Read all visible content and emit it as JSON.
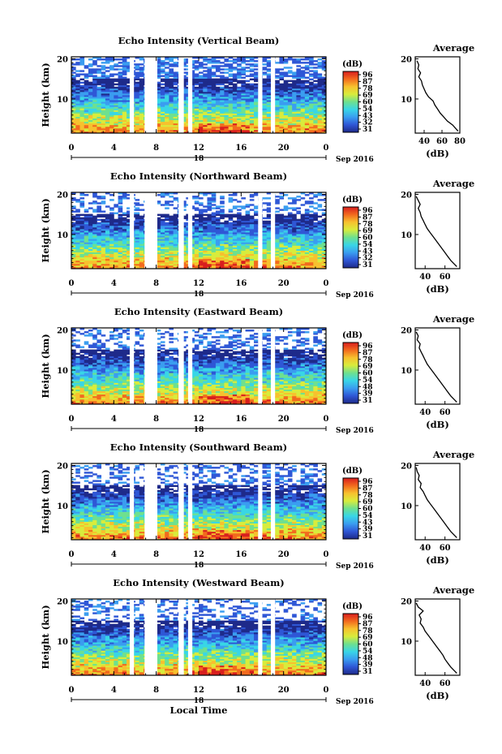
{
  "figure": {
    "xlabel": "Local Time",
    "date_label": "Sep 2016",
    "date_tick": "18",
    "colorbar_unit": "(dB)",
    "colorbar_ticks": [
      "96",
      "87",
      "78",
      "69",
      "60",
      "54",
      "48",
      "42",
      "39",
      "32",
      "31"
    ],
    "colors": {
      "colorbar_stops": [
        "#1e2a8a",
        "#2f57d6",
        "#3a9df0",
        "#39d6e6",
        "#6ee08f",
        "#d8ec3c",
        "#f7c12e",
        "#f26a1e",
        "#d81e1e"
      ],
      "profile_line": "#000000",
      "axis": "#000000",
      "data_gap": "#ffffff"
    }
  },
  "chart_data": [
    {
      "type": "heatmap",
      "title": "Echo Intensity (Vertical Beam)",
      "ylabel": "Height (km)",
      "xlim": [
        0,
        24
      ],
      "ylim": [
        1.5,
        20.5
      ],
      "xticks": [
        "0",
        "4",
        "8",
        "12",
        "16",
        "20",
        "0"
      ],
      "yticks": [
        "20",
        "10"
      ],
      "colorbar": {
        "unit": "(dB)",
        "ticks": [
          "96",
          "87",
          "78",
          "69",
          "60",
          "54",
          "43",
          "32",
          "31"
        ]
      },
      "gaps_hours": [
        [
          5.5,
          5.9
        ],
        [
          6.9,
          8.1
        ],
        [
          10.1,
          10.6
        ],
        [
          11.0,
          11.4
        ],
        [
          17.6,
          18.0
        ],
        [
          18.8,
          19.2
        ]
      ],
      "profile": {
        "title": "Average",
        "xlabel": "(dB)",
        "xlim": [
          30,
          80
        ],
        "xticks": [
          "40",
          "60",
          "80"
        ],
        "ylim": [
          1.5,
          20.5
        ],
        "yticks": [
          "20",
          "10"
        ],
        "x": [
          32,
          34,
          33,
          36,
          34,
          37,
          38,
          40,
          42,
          45,
          50,
          52,
          55,
          58,
          62,
          66,
          72,
          76,
          78
        ],
        "y": [
          19.5,
          18.5,
          17.5,
          16.5,
          15.5,
          14.5,
          13.5,
          12.5,
          11.5,
          10.5,
          9.5,
          8.5,
          7.5,
          6.5,
          5.5,
          4.5,
          3.5,
          2.5,
          2.0
        ]
      }
    },
    {
      "type": "heatmap",
      "title": "Echo Intensity (Northward Beam)",
      "ylabel": "Height (km)",
      "xlim": [
        0,
        24
      ],
      "ylim": [
        1.5,
        20.5
      ],
      "xticks": [
        "0",
        "4",
        "8",
        "12",
        "16",
        "20",
        "0"
      ],
      "yticks": [
        "20",
        "10"
      ],
      "colorbar": {
        "unit": "(dB)",
        "ticks": [
          "96",
          "87",
          "78",
          "69",
          "60",
          "54",
          "43",
          "32",
          "31"
        ]
      },
      "gaps_hours": [
        [
          5.5,
          5.9
        ],
        [
          6.9,
          8.1
        ],
        [
          10.1,
          10.6
        ],
        [
          11.0,
          11.4
        ],
        [
          17.6,
          18.0
        ],
        [
          18.8,
          19.2
        ]
      ],
      "profile": {
        "title": "Average",
        "xlabel": "(dB)",
        "xlim": [
          30,
          75
        ],
        "xticks": [
          "40",
          "60"
        ],
        "ylim": [
          1.5,
          20.5
        ],
        "yticks": [
          "20",
          "10"
        ],
        "x": [
          31,
          33,
          35,
          33,
          35,
          36,
          38,
          40,
          42,
          45,
          48,
          51,
          54,
          57,
          60,
          63,
          66,
          70,
          72
        ],
        "y": [
          19.5,
          18.5,
          17.5,
          16.5,
          15.5,
          14.5,
          13.5,
          12.5,
          11.5,
          10.5,
          9.5,
          8.5,
          7.5,
          6.5,
          5.5,
          4.5,
          3.5,
          2.5,
          2.0
        ]
      }
    },
    {
      "type": "heatmap",
      "title": "Echo Intensity (Eastward Beam)",
      "ylabel": "Height (km)",
      "xlim": [
        0,
        24
      ],
      "ylim": [
        1.5,
        20.5
      ],
      "xticks": [
        "0",
        "4",
        "8",
        "12",
        "16",
        "20",
        "0"
      ],
      "yticks": [
        "20",
        "10"
      ],
      "colorbar": {
        "unit": "(dB)",
        "ticks": [
          "96",
          "87",
          "78",
          "69",
          "60",
          "54",
          "48",
          "39",
          "31"
        ]
      },
      "gaps_hours": [
        [
          5.5,
          5.9
        ],
        [
          6.9,
          8.1
        ],
        [
          10.1,
          10.6
        ],
        [
          11.0,
          11.4
        ],
        [
          17.6,
          18.0
        ],
        [
          18.8,
          19.2
        ]
      ],
      "profile": {
        "title": "Average",
        "xlabel": "(dB)",
        "xlim": [
          30,
          75
        ],
        "xticks": [
          "40",
          "60"
        ],
        "ylim": [
          1.5,
          20.5
        ],
        "yticks": [
          "20",
          "10"
        ],
        "x": [
          31,
          33,
          32,
          35,
          34,
          36,
          38,
          40,
          42,
          45,
          48,
          51,
          54,
          57,
          60,
          63,
          66,
          70,
          72
        ],
        "y": [
          19.5,
          18.5,
          17.5,
          16.5,
          15.5,
          14.5,
          13.5,
          12.5,
          11.5,
          10.5,
          9.5,
          8.5,
          7.5,
          6.5,
          5.5,
          4.5,
          3.5,
          2.5,
          2.0
        ]
      }
    },
    {
      "type": "heatmap",
      "title": "Echo Intensity (Southward Beam)",
      "ylabel": "Height (km)",
      "xlim": [
        0,
        24
      ],
      "ylim": [
        1.5,
        20.5
      ],
      "xticks": [
        "0",
        "4",
        "8",
        "12",
        "16",
        "20",
        "0"
      ],
      "yticks": [
        "20",
        "10"
      ],
      "colorbar": {
        "unit": "(dB)",
        "ticks": [
          "96",
          "87",
          "78",
          "69",
          "60",
          "54",
          "43",
          "39",
          "31"
        ]
      },
      "gaps_hours": [
        [
          5.5,
          5.9
        ],
        [
          6.9,
          8.1
        ],
        [
          10.1,
          10.6
        ],
        [
          11.0,
          11.4
        ],
        [
          17.6,
          18.0
        ],
        [
          18.8,
          19.2
        ]
      ],
      "profile": {
        "title": "Average",
        "xlabel": "(dB)",
        "xlim": [
          30,
          75
        ],
        "xticks": [
          "40",
          "60"
        ],
        "ylim": [
          1.5,
          20.5
        ],
        "yticks": [
          "20",
          "10"
        ],
        "x": [
          31,
          32,
          34,
          33,
          36,
          35,
          38,
          40,
          42,
          45,
          48,
          51,
          54,
          57,
          60,
          63,
          66,
          70,
          72
        ],
        "y": [
          19.5,
          18.5,
          17.5,
          16.5,
          15.5,
          14.5,
          13.5,
          12.5,
          11.5,
          10.5,
          9.5,
          8.5,
          7.5,
          6.5,
          5.5,
          4.5,
          3.5,
          2.5,
          2.0
        ]
      }
    },
    {
      "type": "heatmap",
      "title": "Echo Intensity (Westward Beam)",
      "ylabel": "Height (km)",
      "xlim": [
        0,
        24
      ],
      "ylim": [
        1.5,
        20.5
      ],
      "xticks": [
        "0",
        "4",
        "8",
        "12",
        "16",
        "20",
        "0"
      ],
      "yticks": [
        "20",
        "10"
      ],
      "colorbar": {
        "unit": "(dB)",
        "ticks": [
          "96",
          "87",
          "78",
          "69",
          "60",
          "54",
          "48",
          "39",
          "31"
        ]
      },
      "gaps_hours": [
        [
          5.5,
          5.9
        ],
        [
          6.9,
          8.1
        ],
        [
          10.1,
          10.6
        ],
        [
          11.0,
          11.4
        ],
        [
          17.6,
          18.0
        ],
        [
          18.8,
          19.2
        ]
      ],
      "profile": {
        "title": "Average",
        "xlabel": "(dB)",
        "xlim": [
          30,
          75
        ],
        "xticks": [
          "40",
          "60"
        ],
        "ylim": [
          1.5,
          20.5
        ],
        "yticks": [
          "20",
          "10"
        ],
        "x": [
          31,
          33,
          38,
          34,
          36,
          35,
          38,
          40,
          43,
          46,
          49,
          52,
          55,
          58,
          60,
          63,
          66,
          70,
          72
        ],
        "y": [
          19.5,
          18.5,
          17.5,
          16.5,
          15.5,
          14.5,
          13.5,
          12.5,
          11.5,
          10.5,
          9.5,
          8.5,
          7.5,
          6.5,
          5.5,
          4.5,
          3.5,
          2.5,
          2.0
        ]
      }
    }
  ]
}
